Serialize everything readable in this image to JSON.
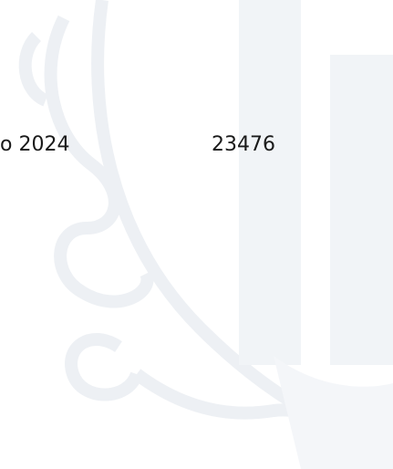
{
  "table": {
    "rows": [
      [
        "o 2024",
        "23476"
      ]
    ]
  }
}
